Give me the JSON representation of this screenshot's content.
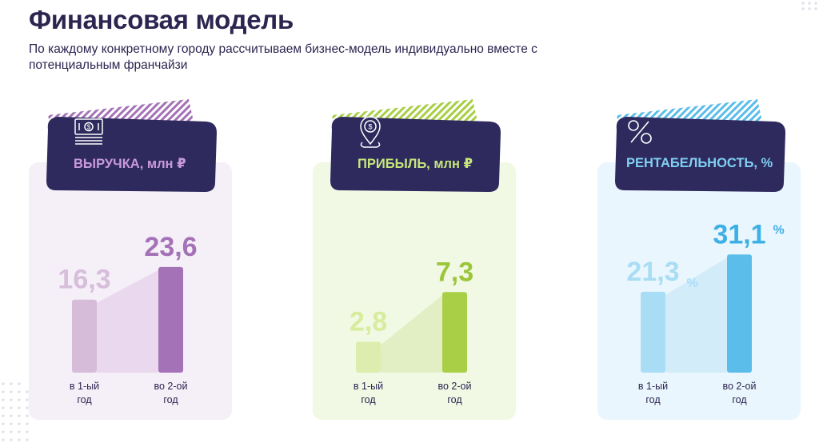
{
  "title": "Финансовая модель",
  "subtitle": "По каждому конкретному городу рассчитываем бизнес-модель индивидуально вместе с потенциальным франчайзи",
  "colors": {
    "dark": "#2f2a5e",
    "revenue": "#a472b6",
    "revenue_light": "#d6bcd9",
    "profit": "#a8cf45",
    "profit_light": "#dcedad",
    "margin": "#5bbde9",
    "margin_light": "#a9ddf5"
  },
  "chart_data": [
    {
      "type": "bar",
      "title": "ВЫРУЧКА, млн ₽",
      "icon": "money-icon",
      "categories": [
        "в 1-ый год",
        "во 2-ой год"
      ],
      "category_lines": [
        [
          "в 1-ый",
          "год"
        ],
        [
          "во 2-ой",
          "год"
        ]
      ],
      "values": [
        16.3,
        23.6
      ],
      "value_labels": [
        "16,3",
        "23,6"
      ],
      "unit_suffix": ""
    },
    {
      "type": "bar",
      "title": "ПРИБЫЛЬ, млн ₽",
      "icon": "location-pin-money-icon",
      "categories": [
        "в 1-ый год",
        "во 2-ой год"
      ],
      "category_lines": [
        [
          "в 1-ый",
          "год"
        ],
        [
          "во 2-ой",
          "год"
        ]
      ],
      "values": [
        2.8,
        7.3
      ],
      "value_labels": [
        "2,8",
        "7,3"
      ],
      "unit_suffix": ""
    },
    {
      "type": "bar",
      "title": "РЕНТАБЕЛЬНОСТЬ, %",
      "icon": "percent-icon",
      "categories": [
        "в 1-ый год",
        "во 2-ой год"
      ],
      "category_lines": [
        [
          "в 1-ый",
          "год"
        ],
        [
          "во 2-ой",
          "год"
        ]
      ],
      "values": [
        21.3,
        31.1
      ],
      "value_labels": [
        "21,3",
        "31,1"
      ],
      "unit_suffix": "%"
    }
  ]
}
